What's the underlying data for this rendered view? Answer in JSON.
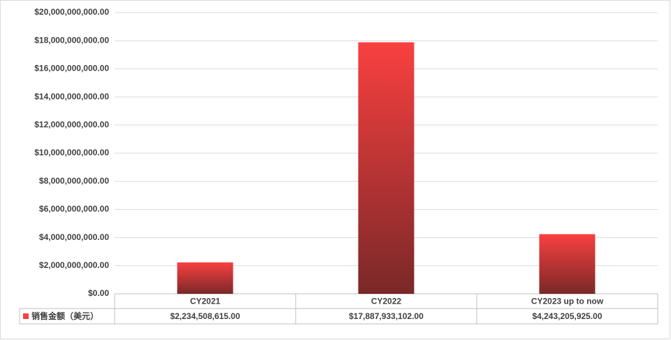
{
  "chart_data": {
    "type": "bar",
    "categories": [
      "CY2021",
      "CY2022",
      "CY2023 up to now"
    ],
    "series": [
      {
        "name": "销售金额（美元）",
        "color": "#f94040",
        "values": [
          2234508615,
          17887933102,
          4243205925
        ],
        "value_labels": [
          "$2,234,508,615.00",
          "$17,887,933,102.00",
          "$4,243,205,925.00"
        ]
      }
    ],
    "ylim": [
      0,
      20000000000
    ],
    "yticks": [
      {
        "value": 0,
        "label": "$0.00"
      },
      {
        "value": 2000000000,
        "label": "$2,000,000,000.00"
      },
      {
        "value": 4000000000,
        "label": "$4,000,000,000.00"
      },
      {
        "value": 6000000000,
        "label": "$6,000,000,000.00"
      },
      {
        "value": 8000000000,
        "label": "$8,000,000,000.00"
      },
      {
        "value": 10000000000,
        "label": "$10,000,000,000.00"
      },
      {
        "value": 12000000000,
        "label": "$12,000,000,000.00"
      },
      {
        "value": 14000000000,
        "label": "$14,000,000,000.00"
      },
      {
        "value": 16000000000,
        "label": "$16,000,000,000.00"
      },
      {
        "value": 18000000000,
        "label": "$18,000,000,000.00"
      },
      {
        "value": 20000000000,
        "label": "$20,000,000,000.00"
      }
    ],
    "grid": true
  }
}
